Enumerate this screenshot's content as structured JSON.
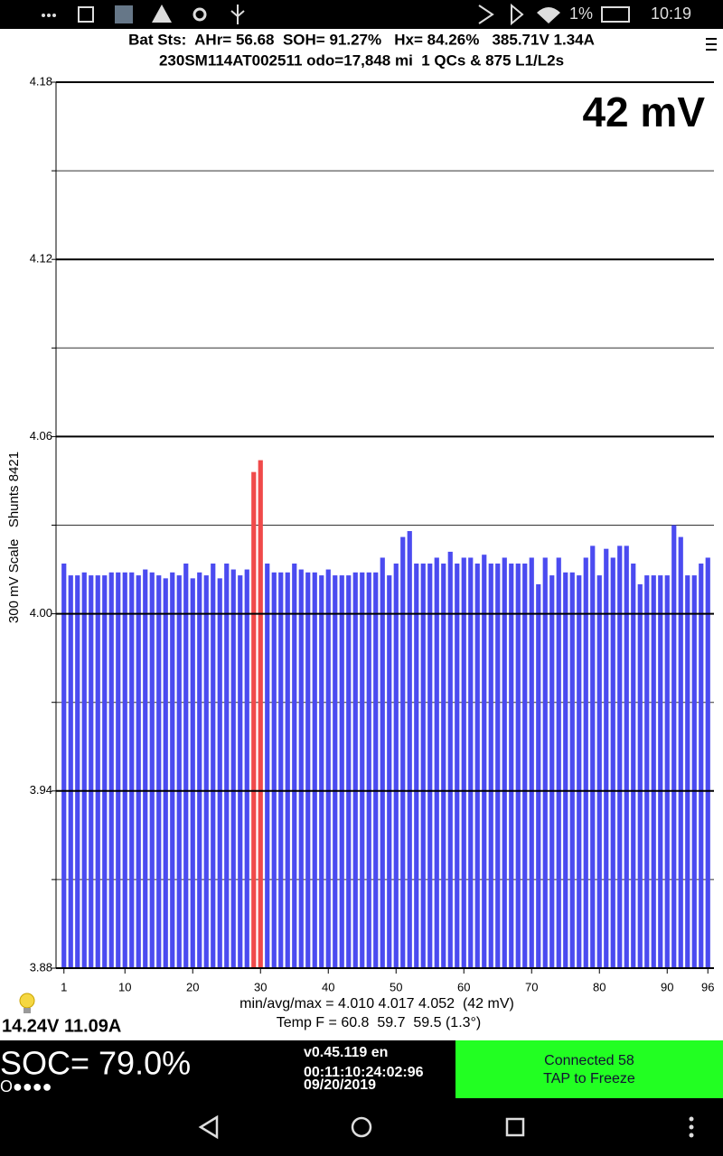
{
  "status_bar": {
    "battery": "1%",
    "time": "10:19"
  },
  "header": {
    "line1": "Bat Sts:  AHr= 56.68  SOH= 91.27%   Hx= 84.26%   385.71V 1.34A",
    "line2": "230SM114AT002511 odo=17,848 mi  1 QCs & 875 L1/L2s"
  },
  "chart_data": {
    "type": "bar",
    "annotation": "42 mV",
    "ylabel": "300 mV Scale   Shunts 8421",
    "x": [
      1,
      2,
      3,
      4,
      5,
      6,
      7,
      8,
      9,
      10,
      11,
      12,
      13,
      14,
      15,
      16,
      17,
      18,
      19,
      20,
      21,
      22,
      23,
      24,
      25,
      26,
      27,
      28,
      29,
      30,
      31,
      32,
      33,
      34,
      35,
      36,
      37,
      38,
      39,
      40,
      41,
      42,
      43,
      44,
      45,
      46,
      47,
      48,
      49,
      50,
      51,
      52,
      53,
      54,
      55,
      56,
      57,
      58,
      59,
      60,
      61,
      62,
      63,
      64,
      65,
      66,
      67,
      68,
      69,
      70,
      71,
      72,
      73,
      74,
      75,
      76,
      77,
      78,
      79,
      80,
      81,
      82,
      83,
      84,
      85,
      86,
      87,
      88,
      89,
      90,
      91,
      92,
      93,
      94,
      95,
      96
    ],
    "values": [
      4.017,
      4.013,
      4.013,
      4.014,
      4.013,
      4.013,
      4.013,
      4.014,
      4.014,
      4.014,
      4.014,
      4.013,
      4.015,
      4.014,
      4.013,
      4.012,
      4.014,
      4.013,
      4.017,
      4.012,
      4.014,
      4.013,
      4.017,
      4.012,
      4.017,
      4.015,
      4.013,
      4.015,
      4.048,
      4.052,
      4.017,
      4.014,
      4.014,
      4.014,
      4.017,
      4.015,
      4.014,
      4.014,
      4.013,
      4.015,
      4.013,
      4.013,
      4.013,
      4.014,
      4.014,
      4.014,
      4.014,
      4.019,
      4.013,
      4.017,
      4.026,
      4.028,
      4.017,
      4.017,
      4.017,
      4.019,
      4.017,
      4.021,
      4.017,
      4.019,
      4.019,
      4.017,
      4.02,
      4.017,
      4.017,
      4.019,
      4.017,
      4.017,
      4.017,
      4.019,
      4.01,
      4.019,
      4.013,
      4.019,
      4.014,
      4.014,
      4.013,
      4.019,
      4.023,
      4.013,
      4.022,
      4.019,
      4.023,
      4.023,
      4.017,
      4.01,
      4.013,
      4.013,
      4.013,
      4.013,
      4.03,
      4.026,
      4.013,
      4.013,
      4.017,
      4.019
    ],
    "colors": [
      "#4b4bf0",
      "#4b4bf0",
      "#4b4bf0",
      "#4b4bf0",
      "#4b4bf0",
      "#4b4bf0",
      "#4b4bf0",
      "#4b4bf0",
      "#4b4bf0",
      "#4b4bf0",
      "#4b4bf0",
      "#4b4bf0",
      "#4b4bf0",
      "#4b4bf0",
      "#4b4bf0",
      "#4b4bf0",
      "#4b4bf0",
      "#4b4bf0",
      "#4b4bf0",
      "#4b4bf0",
      "#4b4bf0",
      "#4b4bf0",
      "#4b4bf0",
      "#4b4bf0",
      "#4b4bf0",
      "#4b4bf0",
      "#4b4bf0",
      "#4b4bf0",
      "#f04a4a",
      "#f04a4a",
      "#4b4bf0",
      "#4b4bf0",
      "#4b4bf0",
      "#4b4bf0",
      "#4b4bf0",
      "#4b4bf0",
      "#4b4bf0",
      "#4b4bf0",
      "#4b4bf0",
      "#4b4bf0",
      "#4b4bf0",
      "#4b4bf0",
      "#4b4bf0",
      "#4b4bf0",
      "#4b4bf0",
      "#4b4bf0",
      "#4b4bf0",
      "#4b4bf0",
      "#4b4bf0",
      "#4b4bf0",
      "#4b4bf0",
      "#4b4bf0",
      "#4b4bf0",
      "#4b4bf0",
      "#4b4bf0",
      "#4b4bf0",
      "#4b4bf0",
      "#4b4bf0",
      "#4b4bf0",
      "#4b4bf0",
      "#4b4bf0",
      "#4b4bf0",
      "#4b4bf0",
      "#4b4bf0",
      "#4b4bf0",
      "#4b4bf0",
      "#4b4bf0",
      "#4b4bf0",
      "#4b4bf0",
      "#4b4bf0",
      "#4b4bf0",
      "#4b4bf0",
      "#4b4bf0",
      "#4b4bf0",
      "#4b4bf0",
      "#4b4bf0",
      "#4b4bf0",
      "#4b4bf0",
      "#4b4bf0",
      "#4b4bf0",
      "#4b4bf0",
      "#4b4bf0",
      "#4b4bf0",
      "#4b4bf0",
      "#4b4bf0",
      "#4b4bf0",
      "#4b4bf0",
      "#4b4bf0",
      "#4b4bf0",
      "#4b4bf0",
      "#4b4bf0",
      "#4b4bf0",
      "#4b4bf0",
      "#4b4bf0",
      "#4b4bf0",
      "#4b4bf0"
    ],
    "xlim": [
      0.5,
      96.5
    ],
    "xticks": [
      1,
      10,
      20,
      30,
      40,
      50,
      60,
      70,
      80,
      90,
      96
    ],
    "ylim": [
      3.88,
      4.18
    ],
    "yticks": [
      3.88,
      3.94,
      {
        "value": 4,
        "label": "4.00"
      },
      4.06,
      4.12,
      4.18
    ],
    "yminor": [
      3.91,
      3.97,
      4.03,
      4.09,
      4.15
    ],
    "grid": true
  },
  "footer": {
    "aux": "14.24V 11.09A",
    "stats": "min/avg/max = 4.010 4.017 4.052  (42 mV)",
    "temp": "Temp F = 60.8  59.7  59.5 (1.3°)",
    "soc": "SOC= 79.0%",
    "dots": "O●●●●",
    "version": "v0.45.119 en",
    "clock": "00:11:10:24:02:96",
    "date": "09/20/2019",
    "status": "Connected 58",
    "action": "TAP to Freeze"
  }
}
